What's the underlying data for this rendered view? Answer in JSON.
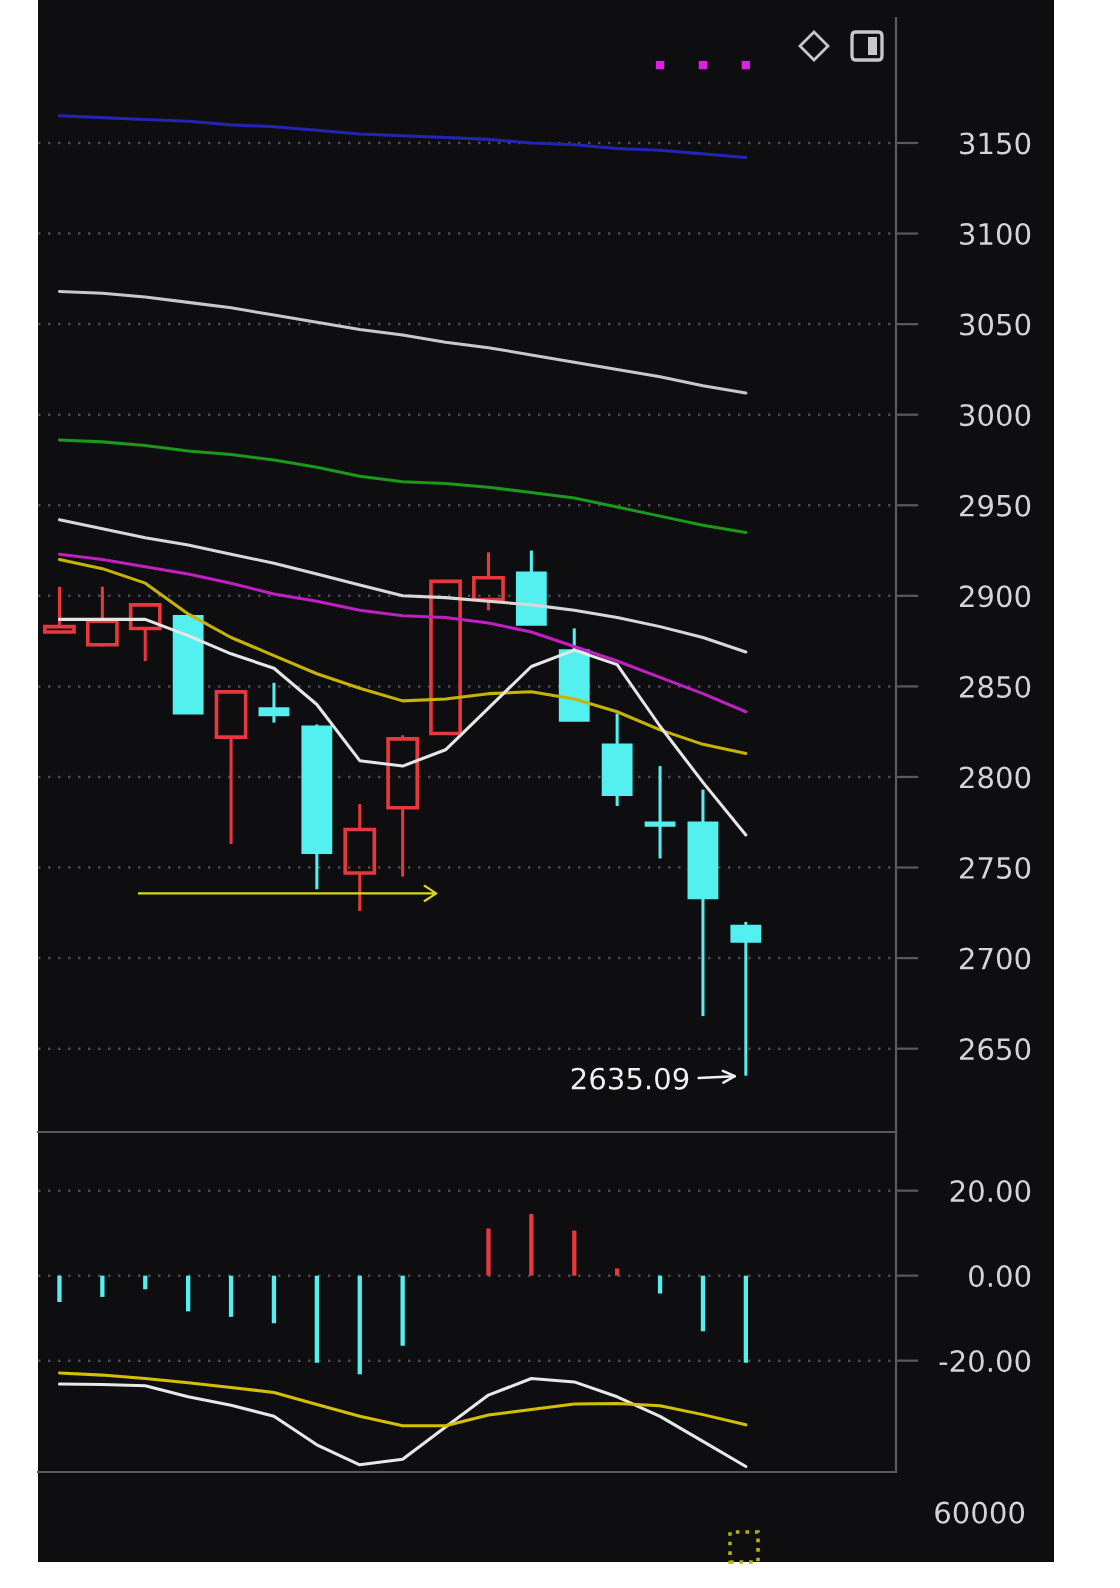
{
  "chart_data": [
    {
      "type": "candlestick",
      "categories": [
        null,
        null,
        null,
        null,
        null,
        null,
        null,
        null,
        null,
        null,
        null,
        null,
        null,
        null,
        null,
        null,
        null
      ],
      "ohlc": [
        [
          2880,
          2905,
          2880,
          2883
        ],
        [
          2873,
          2905,
          2872,
          2886
        ],
        [
          2882,
          2896,
          2864,
          2895
        ],
        [
          2889,
          2890,
          2835,
          2835
        ],
        [
          2822,
          2848,
          2763,
          2847
        ],
        [
          2838,
          2852,
          2830,
          2834
        ],
        [
          2828,
          2829,
          2738,
          2758
        ],
        [
          2747,
          2785,
          2726,
          2771
        ],
        [
          2783,
          2823,
          2745,
          2821
        ],
        [
          2824,
          2908,
          2824,
          2908
        ],
        [
          2898,
          2924,
          2892,
          2910
        ],
        [
          2913,
          2925,
          2884,
          2884
        ],
        [
          2870,
          2882,
          2831,
          2831
        ],
        [
          2818,
          2835,
          2784,
          2790
        ],
        [
          2775,
          2806,
          2755,
          2773
        ],
        [
          2775,
          2793,
          2668,
          2733
        ],
        [
          2718,
          2720,
          2635.09,
          2709
        ]
      ],
      "colors": [
        "#e8383d",
        "#e8383d",
        "#e8383d",
        "#54f0f0",
        "#e8383d",
        "#54f0f0",
        "#54f0f0",
        "#e8383d",
        "#e8383d",
        "#e8383d",
        "#e8383d",
        "#54f0f0",
        "#54f0f0",
        "#54f0f0",
        "#54f0f0",
        "#54f0f0",
        "#54f0f0"
      ],
      "series": [
        {
          "type": "line",
          "color": "#2424b4",
          "values": [
            3165,
            3164,
            3163,
            3162,
            3160,
            3159,
            3157,
            3155,
            3154,
            3153,
            3152,
            3150,
            3149,
            3147,
            3146,
            3144,
            3142
          ]
        },
        {
          "type": "line",
          "color": "#c8c8c8",
          "values": [
            3068,
            3067,
            3065,
            3062,
            3059,
            3055,
            3051,
            3047,
            3044,
            3040,
            3037,
            3033,
            3029,
            3025,
            3021,
            3016,
            3012
          ]
        },
        {
          "type": "line",
          "color": "#1a9a1a",
          "values": [
            2986,
            2985,
            2983,
            2980,
            2978,
            2975,
            2971,
            2966,
            2963,
            2962,
            2960,
            2957,
            2954,
            2949,
            2944,
            2939,
            2935
          ]
        },
        {
          "type": "line",
          "color": "#d8d8d8",
          "values": [
            2942,
            2937,
            2932,
            2928,
            2923,
            2918,
            2912,
            2906,
            2900,
            2899,
            2897,
            2895,
            2892,
            2888,
            2883,
            2877,
            2869
          ]
        },
        {
          "type": "line",
          "color": "#c020c0",
          "values": [
            2923,
            2920,
            2916,
            2912,
            2907,
            2901,
            2897,
            2892,
            2889,
            2888,
            2885,
            2880,
            2872,
            2864,
            2855,
            2846,
            2836
          ]
        },
        {
          "type": "line",
          "color": "#c8b400",
          "values": [
            2920,
            2915,
            2907,
            2890,
            2877,
            2867,
            2857,
            2849,
            2842,
            2843,
            2846,
            2847,
            2843,
            2836,
            2826,
            2818,
            2813
          ]
        },
        {
          "type": "line",
          "color": "#e6e6e6",
          "values": [
            2887,
            2887,
            2887,
            2878,
            2868,
            2860,
            2840,
            2809,
            2806,
            2815,
            2838,
            2861,
            2870,
            2862,
            2828,
            2797,
            2768
          ]
        },
        {
          "type": "scatter",
          "color": "#e020e0",
          "marker": "square",
          "values": [
            null,
            null,
            null,
            null,
            null,
            null,
            null,
            null,
            null,
            null,
            null,
            null,
            null,
            null,
            3193,
            3193,
            3193
          ]
        }
      ],
      "ylim": [
        2604,
        3219
      ],
      "yticks": [
        2650,
        2700,
        2750,
        2800,
        2850,
        2900,
        2950,
        3000,
        3050,
        3100,
        3150
      ],
      "grid": "y",
      "tick_labels": "y",
      "annotations": [
        "2635.09"
      ]
    },
    {
      "type": "bar",
      "categories": [
        null,
        null,
        null,
        null,
        null,
        null,
        null,
        null,
        null,
        null,
        null,
        null,
        null,
        null,
        null,
        null,
        null
      ],
      "series": [
        {
          "type": "bar",
          "colors": [
            "#54f0f0",
            "#54f0f0",
            "#54f0f0",
            "#54f0f0",
            "#54f0f0",
            "#54f0f0",
            "#54f0f0",
            "#54f0f0",
            "#54f0f0",
            "#54f0f0",
            "#e8383d",
            "#e8383d",
            "#e8383d",
            "#e8383d",
            "#54f0f0",
            "#54f0f0",
            "#54f0f0"
          ],
          "values": [
            -6.2,
            -5.0,
            -3.2,
            -8.4,
            -9.7,
            -11.2,
            -20.5,
            -23.2,
            -16.5,
            null,
            11.1,
            14.5,
            10.6,
            1.7,
            -4.2,
            -13.1,
            -20.5
          ]
        },
        {
          "type": "line",
          "color": "#e8e8e8",
          "values": [
            -25.5,
            -25.6,
            -25.9,
            -28.5,
            -30.5,
            -33.1,
            -39.8,
            -44.5,
            -43.2,
            -35.6,
            -28.1,
            -24.2,
            -25.0,
            -28.5,
            -33.1,
            -39.0,
            -44.9
          ]
        },
        {
          "type": "line",
          "color": "#d4c000",
          "values": [
            -22.9,
            -23.4,
            -24.2,
            -25.2,
            -26.3,
            -27.5,
            -30.3,
            -33.1,
            -35.3,
            -35.3,
            -32.8,
            -31.5,
            -30.2,
            -30.1,
            -30.6,
            -32.7,
            -35.1
          ]
        }
      ],
      "ylim": [
        -46.2,
        33.8
      ],
      "yticks": [
        {
          "value": 20,
          "label": "20.00"
        },
        {
          "value": 0,
          "label": "0.00"
        },
        {
          "value": -20,
          "label": "-20.00"
        }
      ],
      "grid": "y",
      "tick_labels": "y"
    },
    {
      "type": "other",
      "annotations": [
        "60000"
      ]
    }
  ]
}
